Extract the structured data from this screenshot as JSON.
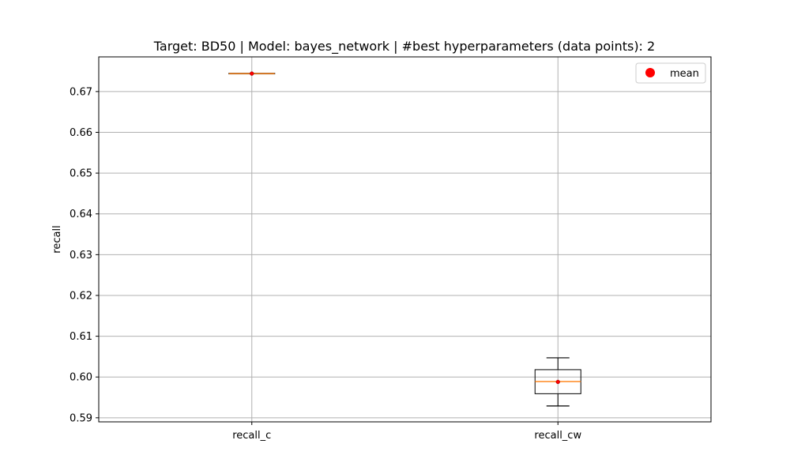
{
  "chart_data": {
    "type": "box",
    "title": "Target: BD50 | Model: bayes_network | #best hyperparameters (data points): 2",
    "xlabel": "",
    "ylabel": "recall",
    "ylim": [
      0.589,
      0.6785
    ],
    "yticks": [
      0.59,
      0.6,
      0.61,
      0.62,
      0.63,
      0.64,
      0.65,
      0.66,
      0.67
    ],
    "ytick_labels": [
      "0.59",
      "0.60",
      "0.61",
      "0.62",
      "0.63",
      "0.64",
      "0.65",
      "0.66",
      "0.67"
    ],
    "grid": true,
    "legend": {
      "placement": "top-right",
      "entries": [
        {
          "label": "mean",
          "marker": "circle",
          "color": "#ff0000"
        }
      ]
    },
    "categories": [
      "recall_c",
      "recall_cw"
    ],
    "boxes": [
      {
        "name": "recall_c",
        "whisker_low": 0.6744,
        "q1": 0.6744,
        "median": 0.6744,
        "q3": 0.6744,
        "whisker_high": 0.6744,
        "mean": 0.6744
      },
      {
        "name": "recall_cw",
        "whisker_low": 0.5929,
        "q1": 0.5959,
        "median": 0.5989,
        "q3": 0.6018,
        "whisker_high": 0.6047,
        "mean": 0.5988
      }
    ],
    "colors": {
      "box": "#000000",
      "median": "#ff7f0e",
      "mean": "#ff0000",
      "grid": "#b0b0b0"
    }
  }
}
